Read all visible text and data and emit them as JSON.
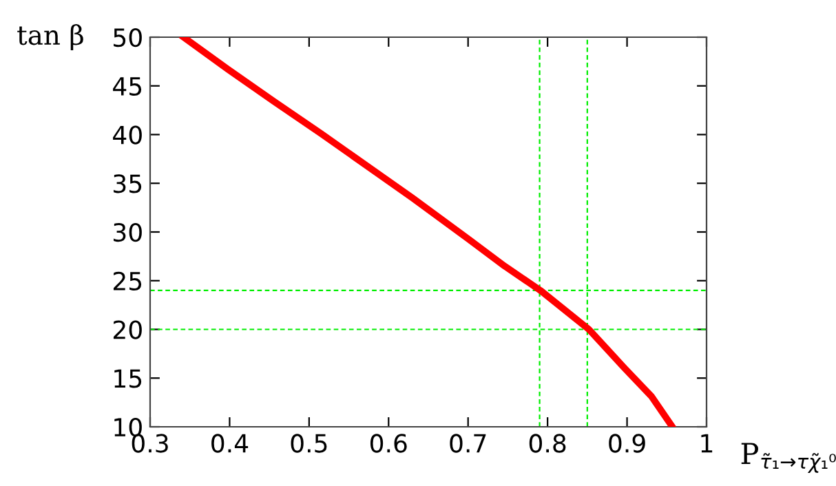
{
  "chart_data": {
    "type": "line",
    "xlabel": "P$_{τ̃₁→τχ̃₁⁰}$",
    "ylabel": "tan β",
    "series": [
      {
        "color": "#ff0000",
        "x": [
          0.342,
          0.398,
          0.456,
          0.515,
          0.63,
          0.7,
          0.746,
          0.791,
          0.852,
          0.896,
          0.931,
          0.957
        ],
        "values": [
          50,
          46.7,
          43.4,
          40.1,
          33.5,
          29.3,
          26.5,
          24.0,
          20.0,
          16.1,
          13.1,
          10
        ]
      }
    ],
    "xlim": [
      0.3,
      1
    ],
    "ylim": [
      10,
      50
    ],
    "xticks": [
      0.3,
      0.4,
      0.5,
      0.6,
      0.7,
      0.8,
      0.9,
      1
    ],
    "yticks": [
      10,
      15,
      20,
      25,
      30,
      35,
      40,
      45,
      50
    ],
    "ref_lines": [
      {
        "axis": "y",
        "value": 24,
        "color": "#00ee00",
        "line_style": "dashed"
      },
      {
        "axis": "y",
        "value": 20,
        "color": "#00ee00",
        "line_style": "dashed"
      },
      {
        "axis": "x",
        "value": 0.79,
        "color": "#00ee00",
        "line_style": "dashed"
      },
      {
        "axis": "x",
        "value": 0.85,
        "color": "#00ee00",
        "line_style": "dashed"
      }
    ],
    "grid": false,
    "legend": false,
    "marker": "none",
    "line_style": "solid"
  }
}
